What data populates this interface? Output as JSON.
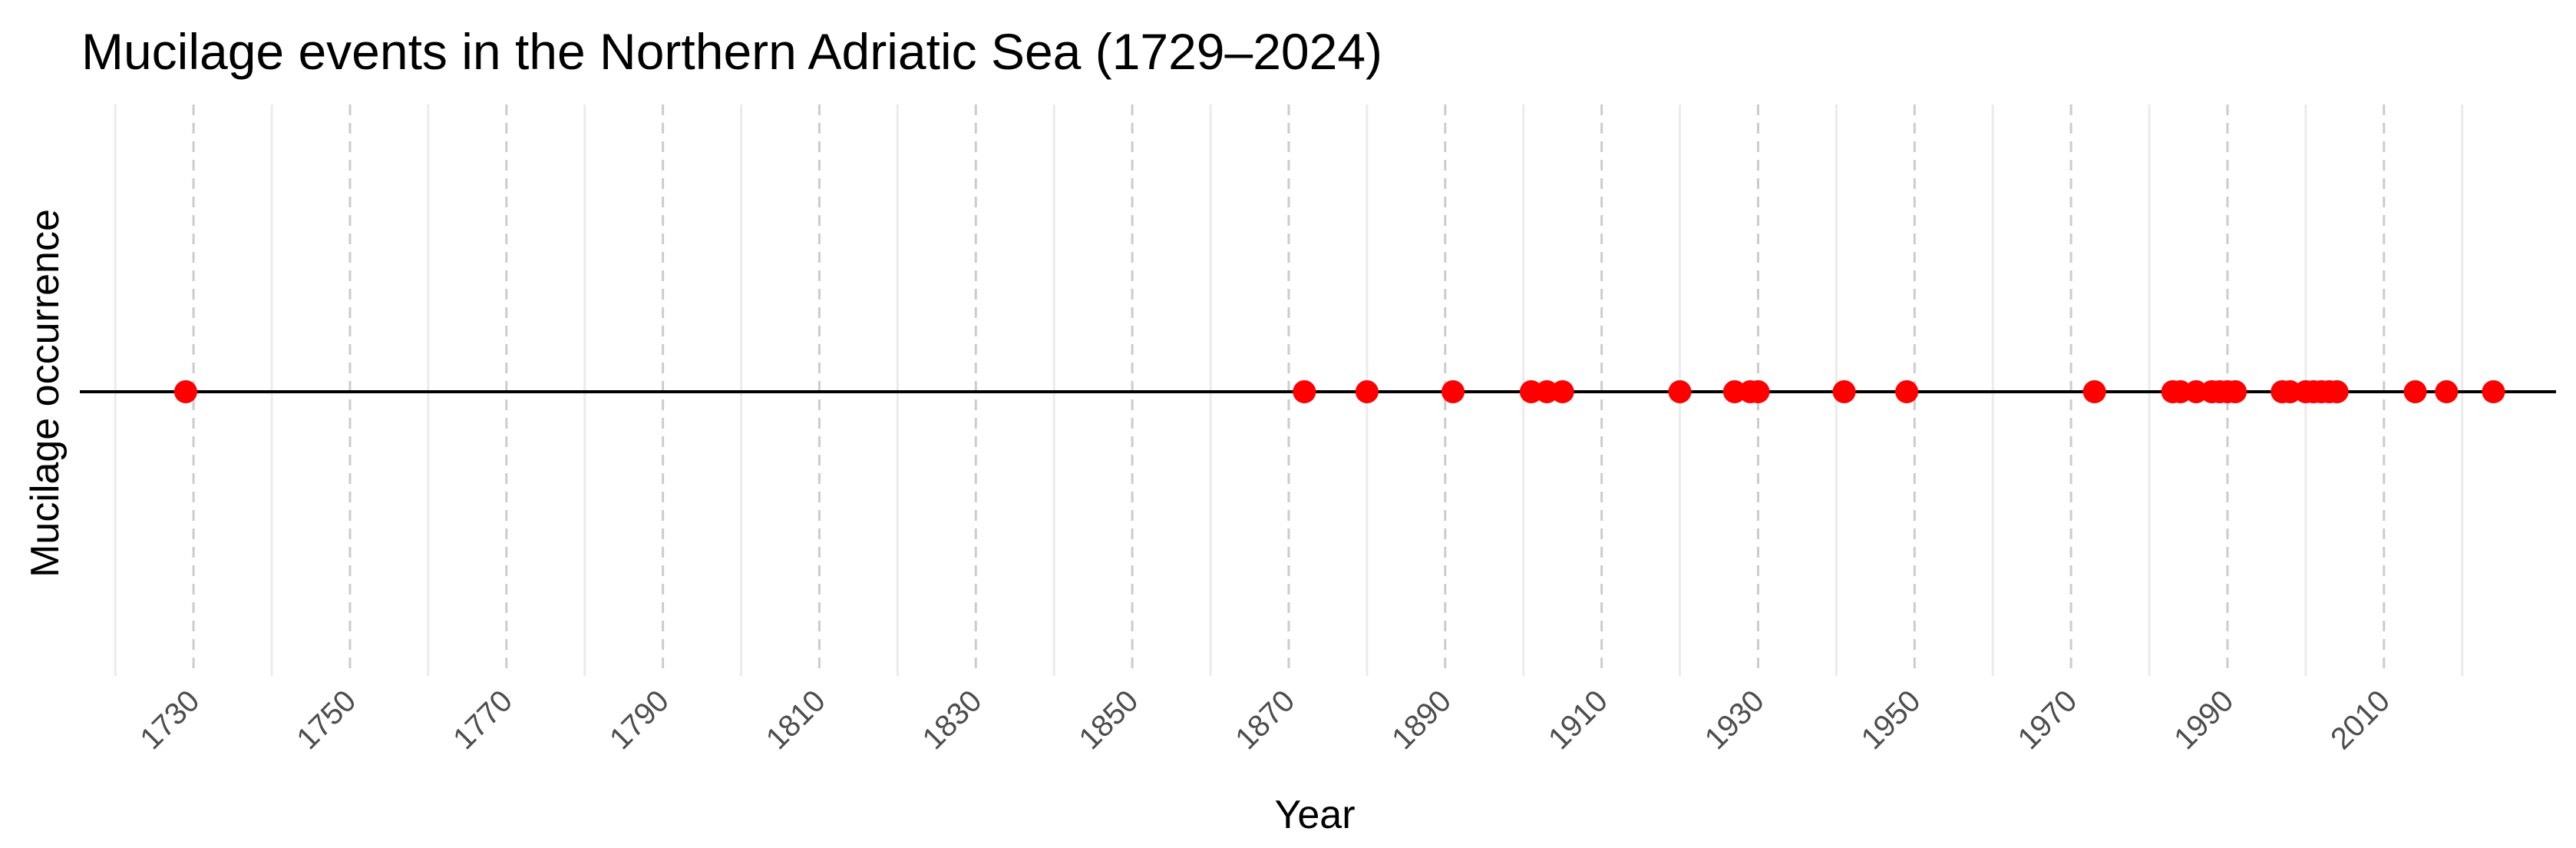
{
  "chart_data": {
    "type": "scatter",
    "title": "Mucilage events in the Northern Adriatic Sea (1729–2024)",
    "xlabel": "Year",
    "ylabel": "Mucilage occurrence",
    "xlim": [
      1719,
      2032
    ],
    "x_ticks": [
      1730,
      1750,
      1770,
      1790,
      1810,
      1830,
      1850,
      1870,
      1890,
      1910,
      1930,
      1950,
      1970,
      1990,
      2010
    ],
    "x_tick_labels": [
      "1730",
      "1750",
      "1770",
      "1790",
      "1810",
      "1830",
      "1850",
      "1870",
      "1890",
      "1910",
      "1930",
      "1950",
      "1970",
      "1990",
      "2010"
    ],
    "x_minor_gridlines": [
      1720,
      1740,
      1760,
      1780,
      1800,
      1820,
      1840,
      1860,
      1880,
      1900,
      1920,
      1940,
      1960,
      1980,
      2000,
      2020
    ],
    "points": [
      1729,
      1872,
      1880,
      1891,
      1901,
      1903,
      1905,
      1920,
      1927,
      1929,
      1930,
      1941,
      1949,
      1973,
      1983,
      1984,
      1986,
      1988,
      1989,
      1990,
      1991,
      1997,
      1998,
      2000,
      2001,
      2002,
      2003,
      2004,
      2014,
      2018,
      2024
    ],
    "y_value": 0,
    "baseline": true,
    "grid": true,
    "legend": "none",
    "point_color": "#ff0000",
    "baseline_color": "#000000",
    "major_grid_color": "#cccccc",
    "minor_grid_color": "#ebebeb"
  }
}
